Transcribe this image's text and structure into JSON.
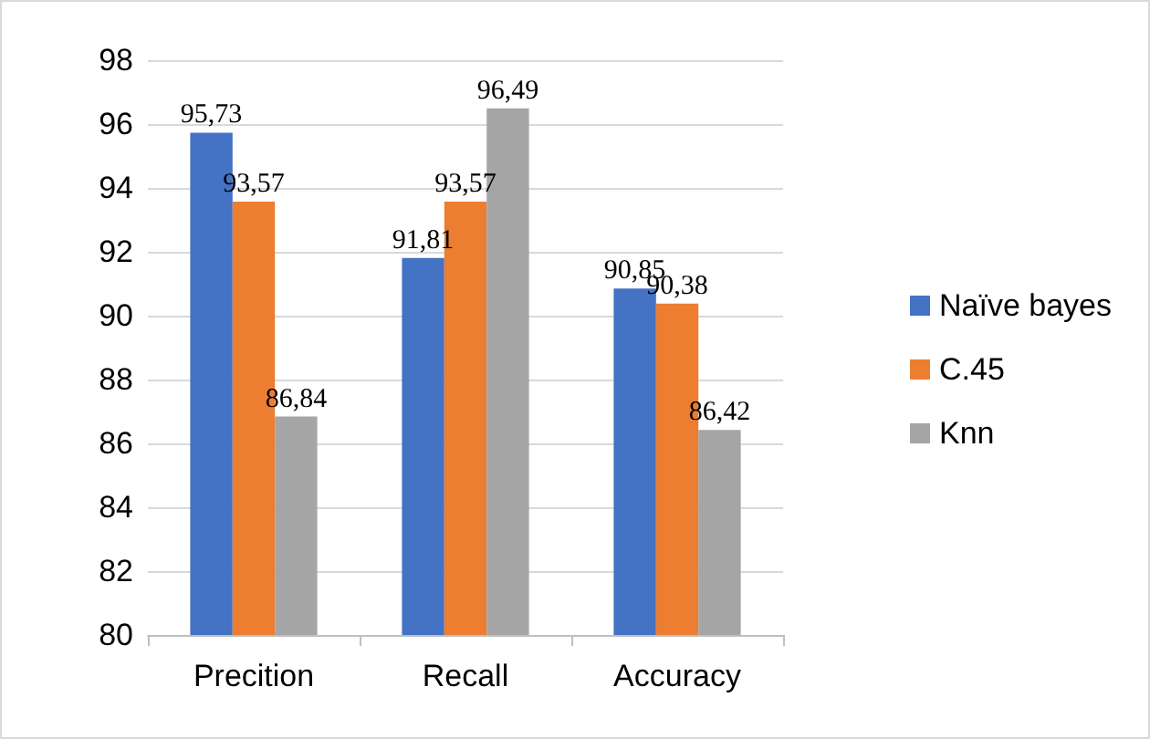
{
  "chart_data": {
    "type": "bar",
    "categories": [
      "Precition",
      "Recall",
      "Accuracy"
    ],
    "series": [
      {
        "name": "Naïve bayes",
        "color": "#4472c4",
        "values": [
          95.73,
          91.81,
          90.85
        ],
        "value_labels": [
          "95,73",
          "91,81",
          "90,85"
        ]
      },
      {
        "name": "C.45",
        "color": "#ed7d31",
        "values": [
          93.57,
          93.57,
          90.38
        ],
        "value_labels": [
          "93,57",
          "93,57",
          "90,38"
        ]
      },
      {
        "name": "Knn",
        "color": "#a5a5a5",
        "values": [
          86.84,
          96.49,
          86.42
        ],
        "value_labels": [
          "86,84",
          "96,49",
          "86,42"
        ]
      }
    ],
    "ylim": [
      80,
      98
    ],
    "yticks": [
      80,
      82,
      84,
      86,
      88,
      90,
      92,
      94,
      96,
      98
    ],
    "grid": "y",
    "legend": "right"
  }
}
